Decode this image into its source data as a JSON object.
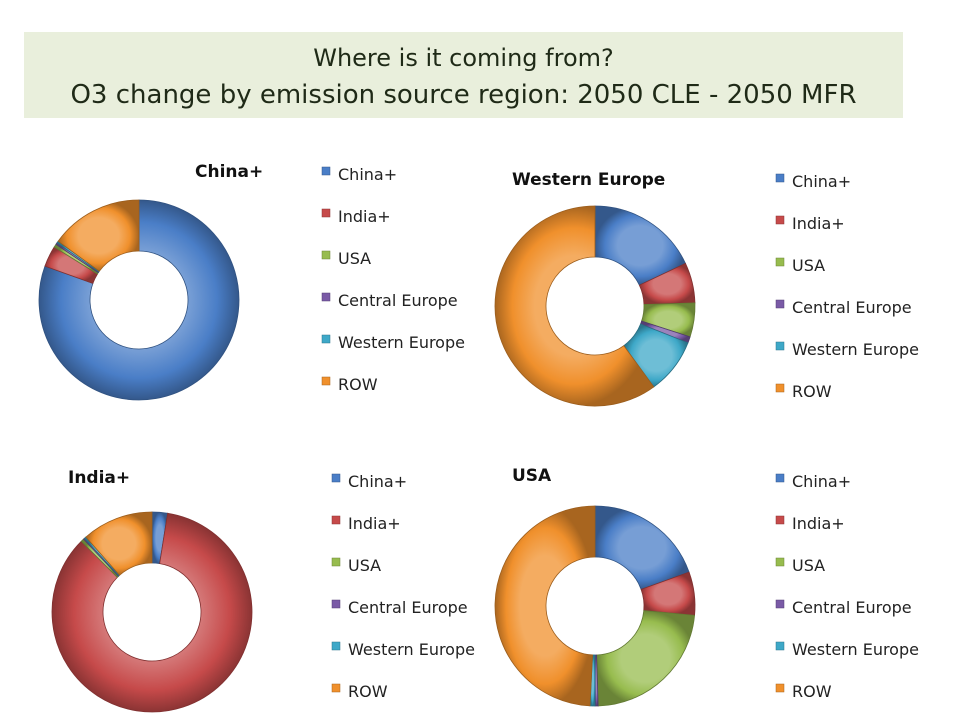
{
  "header": {
    "line1": "Where is it coming from?",
    "line2": "O3 change by emission source region: 2050 CLE - 2050 MFR"
  },
  "colors": {
    "China+": "#4a7ec7",
    "India+": "#c64a4a",
    "USA": "#97bc4e",
    "Central Europe": "#7a5aa6",
    "Western Europe": "#3ea8c8",
    "ROW": "#f0902c",
    "title_bg": "#e9efdc"
  },
  "chart_data": [
    {
      "type": "pie",
      "donut": true,
      "title": "China+",
      "categories": [
        "China+",
        "India+",
        "USA",
        "Central Europe",
        "Western Europe",
        "ROW"
      ],
      "values": [
        80.5,
        3.4,
        0.5,
        0.3,
        0.3,
        15.0
      ]
    },
    {
      "type": "pie",
      "donut": true,
      "title": "Western Europe",
      "categories": [
        "China+",
        "India+",
        "USA",
        "Central Europe",
        "Western Europe",
        "ROW"
      ],
      "values": [
        18.0,
        6.5,
        5.5,
        1.0,
        9.0,
        60.0
      ]
    },
    {
      "type": "pie",
      "donut": true,
      "title": "India+",
      "categories": [
        "China+",
        "India+",
        "USA",
        "Central Europe",
        "Western Europe",
        "ROW"
      ],
      "values": [
        2.5,
        85.0,
        0.5,
        0.2,
        0.3,
        11.5
      ]
    },
    {
      "type": "pie",
      "donut": true,
      "title": "USA",
      "categories": [
        "China+",
        "India+",
        "USA",
        "Central Europe",
        "Western Europe",
        "ROW"
      ],
      "values": [
        19.5,
        7.0,
        23.0,
        0.5,
        0.8,
        49.2
      ]
    }
  ]
}
